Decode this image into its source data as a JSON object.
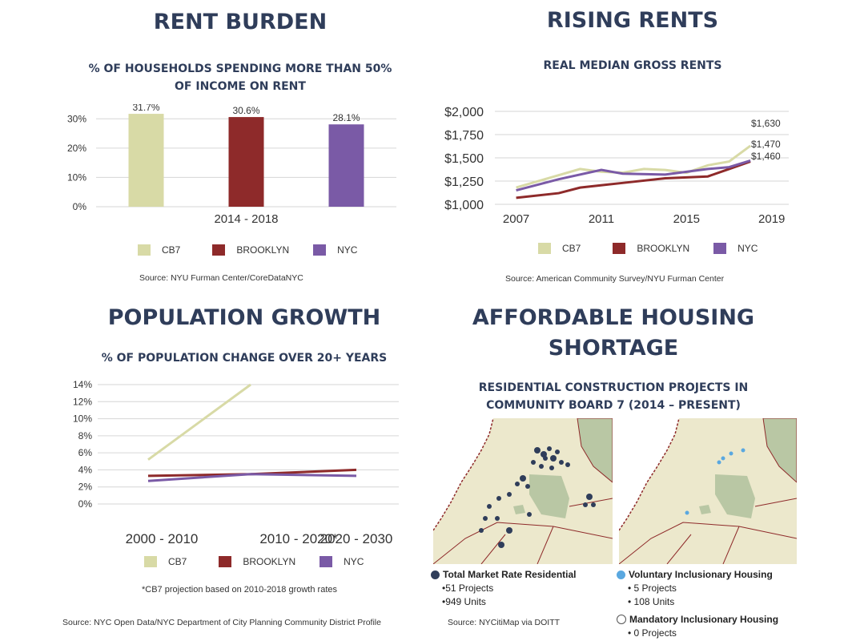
{
  "colors": {
    "cb7": "#d8daa6",
    "brooklyn": "#8e2a2a",
    "nyc": "#7a5aa6",
    "title": "#2f3d5a",
    "park": "#b9c7a4",
    "land": "#ece8cc",
    "market_dot": "#2f3d5a",
    "voluntary_dot": "#5aa8e0"
  },
  "legend": {
    "cb7": "CB7",
    "brooklyn": "BROOKLYN",
    "nyc": "NYC"
  },
  "rent_burden": {
    "title": "RENT BURDEN",
    "subtitle_line1": "%  OF HOUSEHOLDS SPENDING MORE THAN 50%",
    "subtitle_line2": "OF INCOME ON RENT",
    "source": "Source: NYU Furman Center/CoreDataNYC"
  },
  "rising_rents": {
    "title": "RISING RENTS",
    "subtitle": "REAL MEDIAN GROSS RENTS",
    "source": "Source: American Community Survey/NYU Furman Center"
  },
  "population": {
    "title": "POPULATION GROWTH",
    "subtitle": "% OF POPULATION CHANGE OVER 20+ YEARS",
    "footnote": "*CB7 projection based on 2010-2018 growth rates",
    "source": "Source: NYC Open Data/NYC Department of City Planning Community District Profile"
  },
  "housing": {
    "title_line1": "AFFORDABLE HOUSING",
    "title_line2": "SHORTAGE",
    "subtitle_line1": "RESIDENTIAL CONSTRUCTION PROJECTS IN",
    "subtitle_line2": "COMMUNITY BOARD 7 (2014 – PRESENT)",
    "source": "Source: NYCitiMap via DOITT",
    "market_label": "Total Market Rate Residential",
    "market_projects": "51 Projects",
    "market_units": "949 Units",
    "voluntary_label": "Voluntary Inclusionary Housing",
    "voluntary_projects": "5 Projects",
    "voluntary_units": "108 Units",
    "mandatory_label": "Mandatory Inclusionary Housing",
    "mandatory_projects": "0 Projects"
  },
  "chart_data": [
    {
      "type": "bar",
      "categories": [
        "CB7",
        "BROOKLYN",
        "NYC"
      ],
      "values": [
        31.7,
        30.6,
        28.1
      ],
      "value_labels": [
        "31.7%",
        "30.6%",
        "28.1%"
      ],
      "xlabel": "2014 - 2018",
      "yticks": [
        "0%",
        "10%",
        "20%",
        "30%"
      ],
      "ylim": [
        0,
        35
      ],
      "legend": "bottom"
    },
    {
      "type": "line",
      "xlim": [
        2006,
        2019.8
      ],
      "xticks": [
        "2007",
        "2011",
        "2015",
        "2019"
      ],
      "yticks": [
        "$1,000",
        "$1,250",
        "$1,500",
        "$1,750",
        "$2,000"
      ],
      "ylim": [
        1000,
        2000
      ],
      "series": [
        {
          "name": "CB7",
          "x": [
            2007,
            2010,
            2011,
            2012,
            2013,
            2014,
            2015,
            2016,
            2017,
            2018
          ],
          "y": [
            1180,
            1380,
            1350,
            1340,
            1380,
            1370,
            1340,
            1420,
            1460,
            1630
          ]
        },
        {
          "name": "BROOKLYN",
          "x": [
            2007,
            2009,
            2010,
            2012,
            2014,
            2016,
            2017,
            2018
          ],
          "y": [
            1070,
            1120,
            1180,
            1230,
            1280,
            1300,
            1380,
            1460
          ]
        },
        {
          "name": "NYC",
          "x": [
            2007,
            2009,
            2011,
            2012,
            2014,
            2016,
            2017,
            2018
          ],
          "y": [
            1150,
            1270,
            1370,
            1330,
            1320,
            1380,
            1400,
            1470
          ]
        }
      ],
      "end_labels": [
        "$1,630",
        "$1,470",
        "$1,460"
      ],
      "grid": true,
      "legend": "bottom"
    },
    {
      "type": "line",
      "categories": [
        "2000 - 2010",
        "2010 - 2020*",
        "2020 - 2030"
      ],
      "yticks": [
        "0%",
        "2%",
        "4%",
        "6%",
        "8%",
        "10%",
        "12%",
        "14%"
      ],
      "ylim": [
        0,
        14
      ],
      "series": [
        {
          "name": "CB7",
          "x": [
            0,
            1
          ],
          "y": [
            5.2,
            14.0
          ]
        },
        {
          "name": "BROOKLYN",
          "x": [
            0,
            1,
            2
          ],
          "y": [
            3.3,
            3.5,
            4.0
          ]
        },
        {
          "name": "NYC",
          "x": [
            0,
            1,
            2
          ],
          "y": [
            2.7,
            3.5,
            3.3
          ]
        }
      ],
      "grid": true,
      "legend": "bottom"
    }
  ]
}
